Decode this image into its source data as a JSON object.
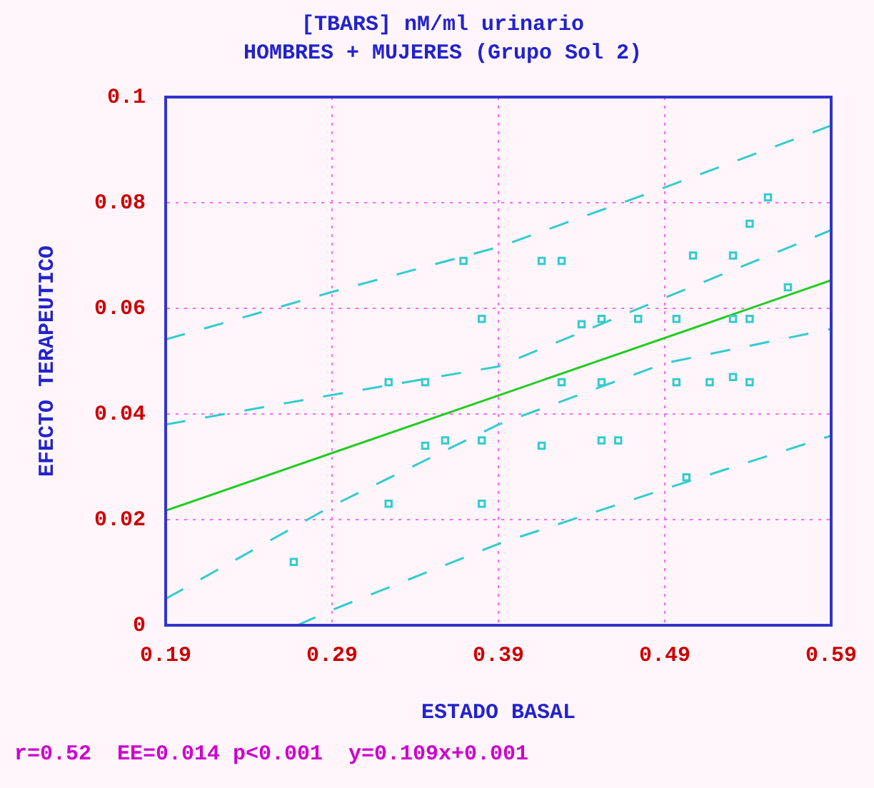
{
  "chart_data": {
    "type": "scatter",
    "title": "[TBARS] nM/ml urinario",
    "subtitle": "HOMBRES + MUJERES (Grupo Sol 2)",
    "xlabel": "ESTADO BASAL",
    "ylabel": "EFECTO TERAPEUTICO",
    "xlim": [
      0.19,
      0.59
    ],
    "xticks": [
      0.19,
      0.29,
      0.39,
      0.49,
      0.59
    ],
    "ylim": [
      0,
      0.1
    ],
    "yticks": [
      0,
      0.02,
      0.04,
      0.06,
      0.08,
      0.1
    ],
    "grid": true,
    "marker": "square",
    "annotations": [
      "r=0.52  EE=0.014 p<0.001  y=0.109x+0.001"
    ],
    "series": [
      {
        "color": "#33cccc",
        "x": [
          0.369,
          0.38,
          0.324,
          0.346,
          0.346,
          0.358,
          0.38,
          0.324,
          0.38,
          0.267,
          0.552,
          0.541,
          0.507,
          0.531,
          0.416,
          0.428,
          0.564,
          0.44,
          0.452,
          0.474,
          0.497,
          0.531,
          0.541,
          0.428,
          0.452,
          0.497,
          0.517,
          0.531,
          0.541,
          0.416,
          0.452,
          0.462,
          0.503
        ],
        "values": [
          0.069,
          0.058,
          0.046,
          0.046,
          0.034,
          0.035,
          0.035,
          0.023,
          0.023,
          0.012,
          0.081,
          0.076,
          0.07,
          0.07,
          0.069,
          0.069,
          0.064,
          0.057,
          0.058,
          0.058,
          0.058,
          0.058,
          0.058,
          0.046,
          0.046,
          0.046,
          0.046,
          0.047,
          0.046,
          0.034,
          0.035,
          0.035,
          0.028
        ]
      },
      {
        "type": "line",
        "color": "#22cc22",
        "line_style": "solid",
        "marker": "none",
        "x": [
          0.19,
          0.59
        ],
        "values": [
          0.0217,
          0.0653
        ]
      },
      {
        "type": "line",
        "color": "#33cccc",
        "line_style": "dashed",
        "marker": "none",
        "x": [
          0.19,
          0.29,
          0.39,
          0.49,
          0.59
        ],
        "values": [
          0.038,
          0.0436,
          0.049,
          0.062,
          0.0748
        ]
      },
      {
        "type": "line",
        "color": "#33cccc",
        "line_style": "dashed",
        "marker": "none",
        "x": [
          0.19,
          0.29,
          0.39,
          0.49,
          0.59
        ],
        "values": [
          0.005,
          0.0226,
          0.038,
          0.0496,
          0.0561
        ]
      },
      {
        "type": "line",
        "color": "#33cccc",
        "line_style": "dashed",
        "marker": "none",
        "x": [
          0.19,
          0.29,
          0.39,
          0.49,
          0.59
        ],
        "values": [
          0.0541,
          0.0631,
          0.0716,
          0.0829,
          0.0946
        ]
      },
      {
        "type": "line",
        "color": "#33cccc",
        "line_style": "dashed",
        "marker": "none",
        "x": [
          0.269,
          0.29,
          0.39,
          0.49,
          0.59
        ],
        "values": [
          0,
          0.0029,
          0.0154,
          0.0258,
          0.0359
        ]
      }
    ]
  }
}
